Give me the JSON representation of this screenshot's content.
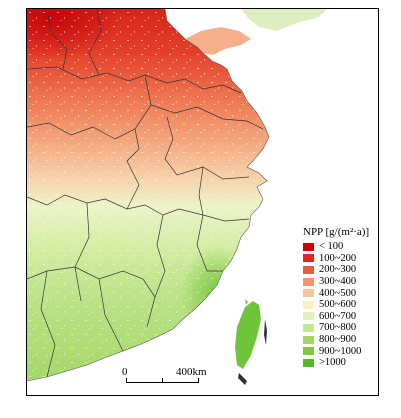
{
  "legend": {
    "title": "NPP [g/(m²·a)]",
    "items": [
      {
        "label": "< 100",
        "color": "#cc0000"
      },
      {
        "label": "100~200",
        "color": "#e4271d"
      },
      {
        "label": "200~300",
        "color": "#ef5a3c"
      },
      {
        "label": "300~400",
        "color": "#f5946a"
      },
      {
        "label": "400~500",
        "color": "#f8c49a"
      },
      {
        "label": "500~600",
        "color": "#fbf2c4"
      },
      {
        "label": "600~700",
        "color": "#e2f0b8"
      },
      {
        "label": "700~800",
        "color": "#c3e78d"
      },
      {
        "label": "800~900",
        "color": "#a2d860"
      },
      {
        "label": "900~1000",
        "color": "#7ec93f"
      },
      {
        "label": ">1000",
        "color": "#52bb22"
      }
    ]
  },
  "scalebar": {
    "start_label": "0",
    "end_label": "400km"
  },
  "colors": {
    "sea": "#ffffff",
    "boundary": "#333333"
  }
}
